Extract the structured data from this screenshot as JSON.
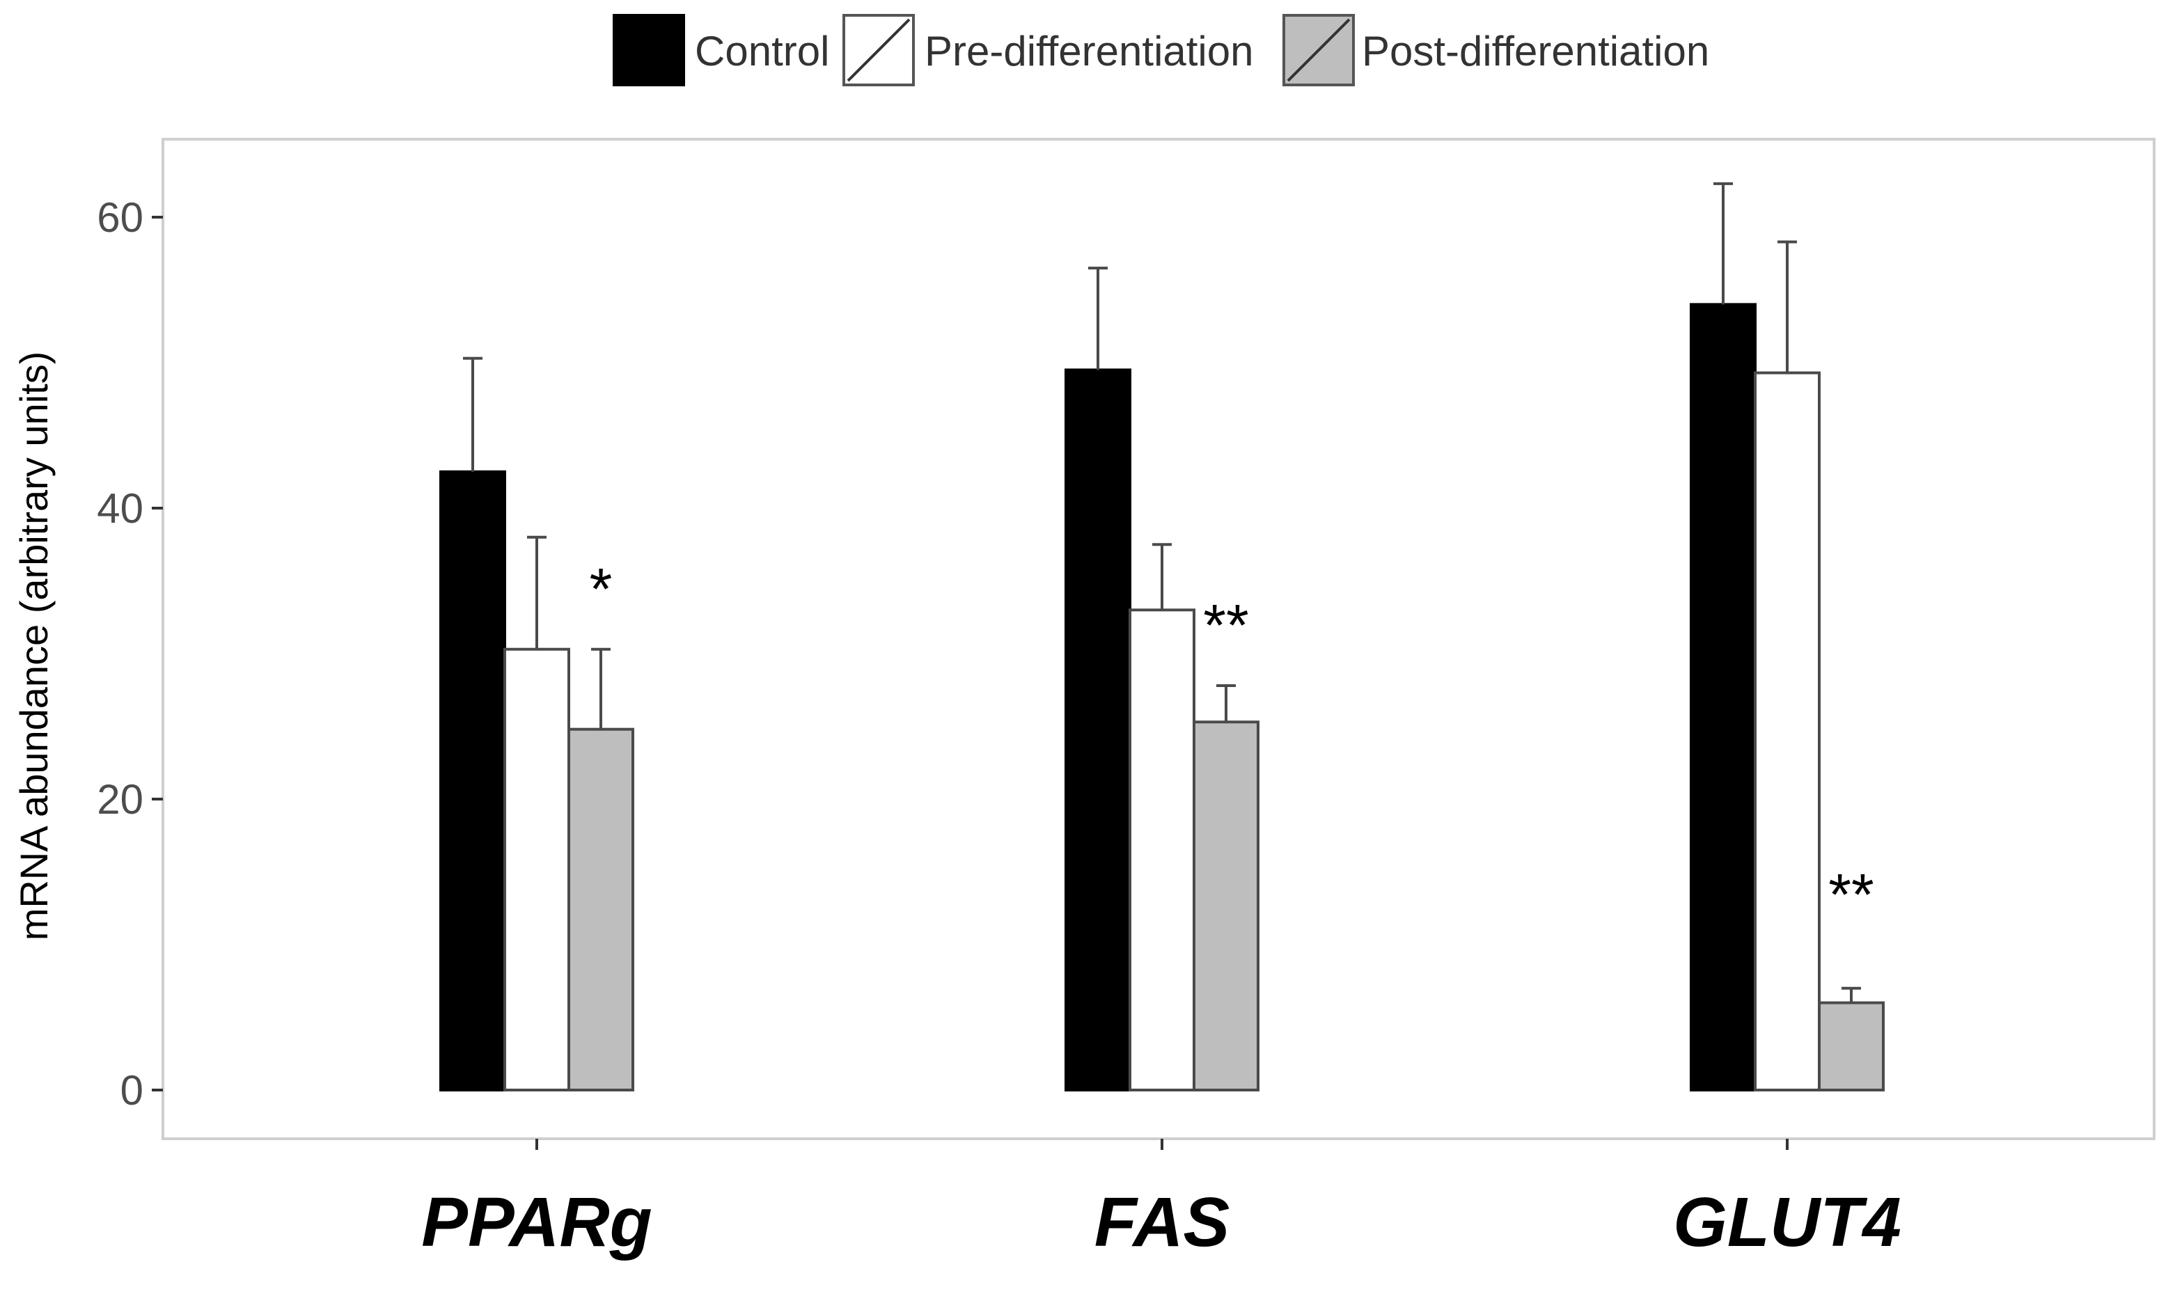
{
  "chart_data": {
    "type": "bar",
    "title": "",
    "xlabel": "",
    "ylabel": "mRNA abundance (arbitrary units)",
    "categories": [
      "PPARg",
      "FAS",
      "GLUT4"
    ],
    "series": [
      {
        "name": "Control",
        "color": "#000000",
        "values": [
          42.5,
          49.5,
          54.0
        ],
        "error_upper": [
          50.3,
          56.5,
          62.3
        ]
      },
      {
        "name": "Pre-differentiation",
        "color": "#ffffff",
        "values": [
          30.3,
          33.0,
          49.3
        ],
        "error_upper": [
          38.0,
          37.5,
          58.3
        ]
      },
      {
        "name": "Post-differentiation",
        "color": "#bebebe",
        "values": [
          24.8,
          25.3,
          6.0
        ],
        "error_upper": [
          30.3,
          27.8,
          7.0
        ]
      }
    ],
    "annotations": [
      {
        "category": "PPARg",
        "text": "*",
        "y": 34.5
      },
      {
        "category": "FAS",
        "text": "**",
        "y": 32.0
      },
      {
        "category": "GLUT4",
        "text": "**",
        "y": 13.5
      }
    ],
    "ylim": [
      -3,
      65
    ],
    "yticks": [
      0,
      20,
      40,
      60
    ],
    "grid": false,
    "legend_position": "top"
  }
}
